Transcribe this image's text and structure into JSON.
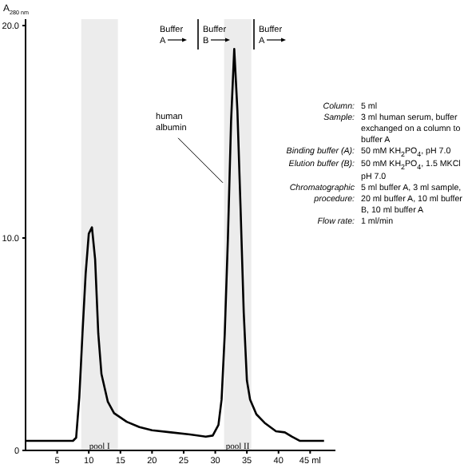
{
  "chart_data": {
    "type": "line",
    "ylabel": "A$_{280 nm}$",
    "x": [
      0,
      7.5,
      8.0,
      8.5,
      9.0,
      9.5,
      10.0,
      10.5,
      11.0,
      11.5,
      12.0,
      13.0,
      14.0,
      16,
      18,
      20,
      23,
      26,
      28.5,
      29.6,
      30.5,
      31.0,
      31.5,
      32.0,
      32.5,
      33.0,
      33.5,
      34.0,
      34.5,
      35.0,
      35.5,
      36.5,
      37.8,
      39.6,
      41,
      42.1,
      43.4,
      45,
      47.2
    ],
    "series": [
      {
        "color": "#000000",
        "values": [
          0.45,
          0.45,
          0.6,
          2.5,
          5.5,
          8.3,
          10.2,
          10.5,
          9,
          5.5,
          3.6,
          2.3,
          1.75,
          1.35,
          1.1,
          0.95,
          0.85,
          0.75,
          0.65,
          0.7,
          1.2,
          2.4,
          5.5,
          10,
          15.5,
          18.9,
          16,
          11.4,
          6.5,
          3.3,
          2.4,
          1.7,
          1.3,
          0.9,
          0.85,
          0.65,
          0.45,
          0.45,
          0.45
        ]
      }
    ],
    "xlim": [
      0,
      49
    ],
    "xticks": [
      5,
      10,
      15,
      20,
      25,
      30,
      35,
      40,
      {
        "value": 45,
        "label": "45 ml"
      }
    ],
    "ylim": [
      0,
      20.3
    ],
    "yticks": [
      0,
      {
        "value": 10,
        "label": "10.0"
      },
      {
        "value": 20,
        "label": "20.0"
      }
    ],
    "bands": [
      {
        "axis": "x",
        "from": 8.8,
        "to": 14.6,
        "label": "pool I",
        "color": "#ececec"
      },
      {
        "axis": "x",
        "from": 31.4,
        "to": 35.7,
        "label": "pool II",
        "color": "#ececec"
      }
    ],
    "annotations": [
      "Buffer A",
      "Buffer B",
      "Buffer A",
      {
        "text": "human albumin",
        "x": 31.2,
        "y": 12.6
      },
      "Column:",
      "5 ml",
      "Sample:",
      "3 ml human serum, buffer exchanged on a column to buffer A",
      "Binding buffer (A):",
      "50 mM KH$_{2}$PO$_{4}$, pH 7.0",
      "Elution buffer (B):",
      "50 mM KH$_{2}$PO$_{4}$, 1.5 MKCl pH 7.0",
      "Chromatographic procedure:",
      "5 ml buffer A, 3 ml sample, 20 ml buffer A, 10 ml buffer B, 10 ml buffer A",
      "Flow rate:",
      "1 ml/min"
    ]
  }
}
